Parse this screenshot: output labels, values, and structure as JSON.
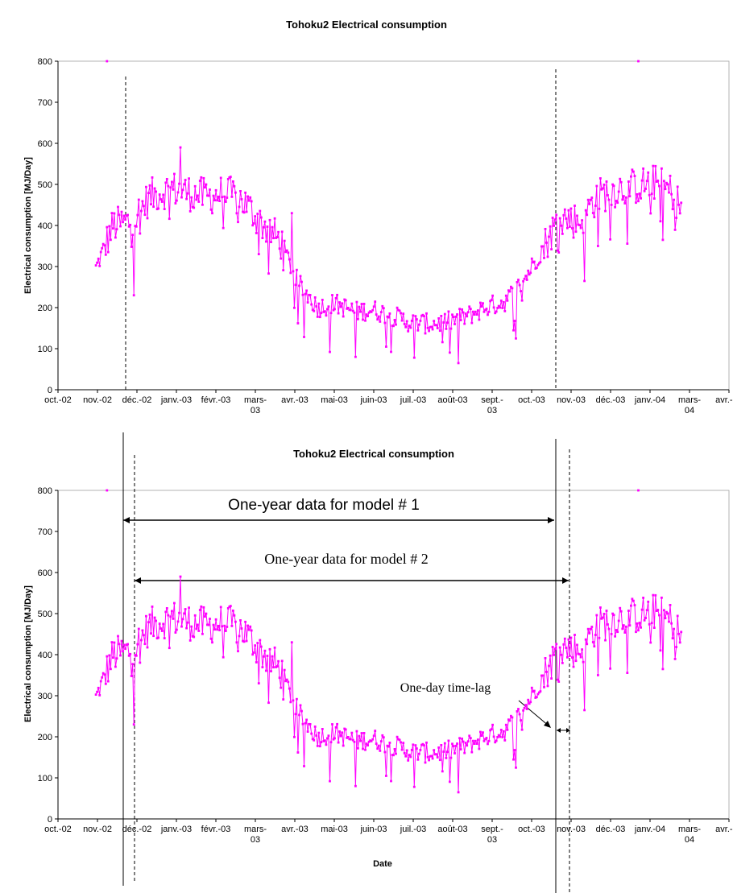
{
  "colors": {
    "series": "#ff00ff",
    "axis": "#000000",
    "plot_border": "#a0a0a0",
    "background": "#ffffff"
  },
  "chart_data": [
    {
      "type": "line",
      "title": "Tohoku2 Electrical consumption",
      "ylabel": "Electrical consumption [MJ/Day]",
      "xlabel": "",
      "ylim": [
        0,
        800
      ],
      "yticks": [
        "0",
        "100",
        "200",
        "300",
        "400",
        "500",
        "600",
        "700",
        "800"
      ],
      "xticks": [
        "oct.-02",
        "nov.-02",
        "déc.-02",
        "janv.-03",
        "févr.-03",
        "mars-\n03",
        "avr.-03",
        "mai-03",
        "juin-03",
        "juil.-03",
        "août-03",
        "sept.-\n03",
        "oct.-03",
        "nov.-03",
        "déc.-03",
        "janv.-04",
        "mars-\n04",
        "avr.-04"
      ],
      "x_range": [
        "2002-10-01",
        "2004-04-01"
      ],
      "grid": false,
      "legend": "none",
      "series": [
        {
          "values_start": "2002-11-01",
          "values_end": "2004-02-22",
          "key_points": [
            [
              "2002-11-01",
              295
            ],
            [
              "2002-11-15",
              400
            ],
            [
              "2002-12-01",
              410
            ],
            [
              "2002-12-15",
              470
            ],
            [
              "2003-01-01",
              490
            ],
            [
              "2003-01-15",
              480
            ],
            [
              "2003-02-01",
              470
            ],
            [
              "2003-02-15",
              480
            ],
            [
              "2003-03-01",
              460
            ],
            [
              "2003-03-15",
              410
            ],
            [
              "2003-04-01",
              360
            ],
            [
              "2003-04-15",
              260
            ],
            [
              "2003-05-01",
              200
            ],
            [
              "2003-05-15",
              210
            ],
            [
              "2003-06-01",
              190
            ],
            [
              "2003-06-15",
              195
            ],
            [
              "2003-07-01",
              180
            ],
            [
              "2003-07-15",
              165
            ],
            [
              "2003-08-01",
              160
            ],
            [
              "2003-08-15",
              165
            ],
            [
              "2003-09-01",
              180
            ],
            [
              "2003-09-15",
              200
            ],
            [
              "2003-10-01",
              215
            ],
            [
              "2003-10-15",
              260
            ],
            [
              "2003-11-01",
              345
            ],
            [
              "2003-11-15",
              420
            ],
            [
              "2003-12-01",
              410
            ],
            [
              "2003-12-15",
              470
            ],
            [
              "2004-01-01",
              490
            ],
            [
              "2004-01-15",
              495
            ],
            [
              "2004-02-01",
              505
            ],
            [
              "2004-02-15",
              480
            ],
            [
              "2004-02-22",
              440
            ]
          ]
        },
        {
          "name": "",
          "outliers": [
            [
              "2002-11-10",
              800
            ],
            [
              "2004-01-18",
              800
            ],
            [
              "2002-12-02",
              230
            ],
            [
              "2003-06-01",
              80
            ],
            [
              "2003-07-19",
              78
            ],
            [
              "2003-08-24",
              65
            ],
            [
              "2003-12-05",
              265
            ],
            [
              "2003-12-16",
              350
            ],
            [
              "2004-02-07",
              365
            ],
            [
              "2003-01-09",
              590
            ],
            [
              "2003-04-10",
              430
            ],
            [
              "2003-10-10",
              125
            ]
          ]
        }
      ]
    },
    {
      "type": "line",
      "title": "Tohoku2 Electrical consumption",
      "ylabel": "Electrical consumption [MJ/Day]",
      "xlabel": "Date",
      "ylim": [
        0,
        800
      ],
      "yticks": [
        "0",
        "100",
        "200",
        "300",
        "400",
        "500",
        "600",
        "700",
        "800"
      ],
      "xticks": [
        "oct.-02",
        "nov.-02",
        "déc.-02",
        "janv.-03",
        "févr.-03",
        "mars-\n03",
        "avr.-03",
        "mai-03",
        "juin-03",
        "juil.-03",
        "août-03",
        "sept.-\n03",
        "oct.-03",
        "nov.-03",
        "déc.-03",
        "janv.-04",
        "mars-\n04",
        "avr.-04"
      ],
      "annotations": [
        {
          "text": "One-year data for model # 1",
          "from": "2002-11-28",
          "to": "2003-11-28"
        },
        {
          "text": "One-year data for model # 2",
          "from": "2002-11-29",
          "to": "2003-11-29"
        },
        {
          "text": "One-day time-lag"
        }
      ],
      "grid": false,
      "legend": "none"
    }
  ]
}
